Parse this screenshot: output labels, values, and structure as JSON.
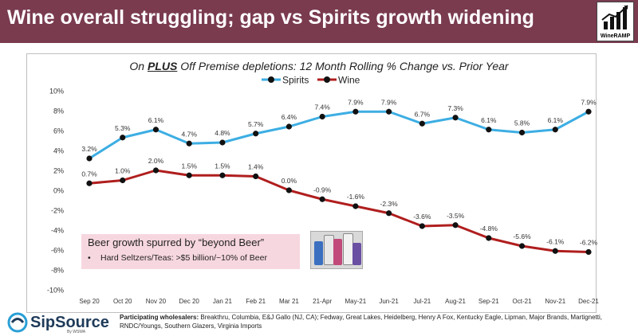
{
  "header": {
    "title": "Wine overall struggling; gap vs Spirits growth widening",
    "logo_text": "WineRAMP"
  },
  "colors": {
    "banner": "#7a3b4f",
    "spirits": "#3daee3",
    "wine": "#b01e1e",
    "note_bg": "#f7d7df"
  },
  "subtitle": {
    "prefix": "On ",
    "emphasis": "PLUS",
    "rest": " Off Premise depletions: 12 Month Rolling % Change vs. Prior Year"
  },
  "chart_data": {
    "type": "line",
    "title": "On PLUS Off Premise depletions: 12 Month Rolling % Change vs. Prior Year",
    "xlabel": "",
    "ylabel": "",
    "ylim": [
      -10,
      10
    ],
    "yticks": [
      10,
      8,
      6,
      4,
      2,
      0,
      -2,
      -4,
      -6,
      -8,
      -10
    ],
    "ytick_labels": [
      "10%",
      "8%",
      "6%",
      "4%",
      "2%",
      "0%",
      "-2%",
      "-4%",
      "-6%",
      "-8%",
      "-10%"
    ],
    "legend_position": "top-center",
    "grid": false,
    "categories": [
      "Sep 20",
      "Oct 20",
      "Nov 20",
      "Dec 20",
      "Jan 21",
      "Feb 21",
      "Mar 21",
      "21-Apr",
      "May-21",
      "Jun-21",
      "Jul-21",
      "Aug-21",
      "Sep-21",
      "Oct-21",
      "Nov-21",
      "Dec-21"
    ],
    "series": [
      {
        "name": "Spirits",
        "color": "#3daee3",
        "values": [
          3.2,
          5.3,
          6.1,
          4.7,
          4.8,
          5.7,
          6.4,
          7.4,
          7.9,
          7.9,
          6.7,
          7.3,
          6.1,
          5.8,
          6.1,
          7.9
        ],
        "labels": [
          "3.2%",
          "5.3%",
          "6.1%",
          "4.7%",
          "4.8%",
          "5.7%",
          "6.4%",
          "7.4%",
          "7.9%",
          "7.9%",
          "6.7%",
          "7.3%",
          "6.1%",
          "5.8%",
          "6.1%",
          "7.9%"
        ]
      },
      {
        "name": "Wine",
        "color": "#b01e1e",
        "values": [
          0.7,
          1.0,
          2.0,
          1.5,
          1.5,
          1.4,
          0.0,
          -0.9,
          -1.6,
          -2.3,
          -3.6,
          -3.5,
          -4.8,
          -5.6,
          -6.1,
          -6.2
        ],
        "labels": [
          "0.7%",
          "1.0%",
          "2.0%",
          "1.5%",
          "1.5%",
          "1.4%",
          "0.0%",
          "-0.9%",
          "-1.6%",
          "-2.3%",
          "-3.6%",
          "-3.5%",
          "-4.8%",
          "-5.6%",
          "-6.1%",
          "-6.2%"
        ]
      }
    ]
  },
  "note": {
    "heading": "Beer growth spurred by “beyond Beer”",
    "bullet_marker": "•",
    "bullet_text": "Hard Seltzers/Teas: >$5 billion/~10% of Beer"
  },
  "footer": {
    "brand": "SipSource",
    "brand_sub": "By WSWA",
    "participants_label": "Participating wholesalers:",
    "participants_text": "Breakthru, Columbia, E&J Gallo (NJ, CA); Fedway, Great Lakes, Heidelberg, Henry A Fox, Kentucky Eagle, Lipman, Major Brands, Martignetti, RNDC/Youngs, Southern Glazers, Virginia Imports"
  }
}
